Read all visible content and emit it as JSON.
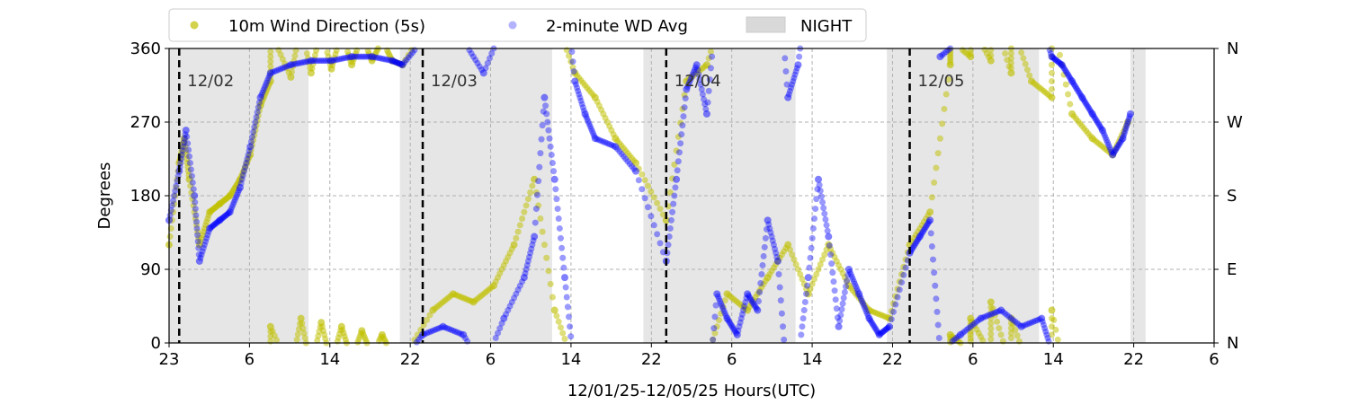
{
  "chart_data": {
    "type": "scatter",
    "xlabel": "12/01/25-12/05/25  Hours(UTC)",
    "ylabel": "Degrees",
    "x_unit": "hours UTC",
    "xlim": [
      "12/01 23:00",
      "12/06 06:00"
    ],
    "ylim": [
      0,
      360
    ],
    "x_ticks": [
      "23",
      "6",
      "14",
      "22",
      "6",
      "14",
      "22",
      "6",
      "14",
      "22",
      "6",
      "14",
      "22",
      "6"
    ],
    "y_ticks": [
      "0",
      "90",
      "180",
      "270",
      "360"
    ],
    "y2_ticks": [
      "N",
      "E",
      "S",
      "W",
      "N"
    ],
    "grid": true,
    "legend_position": "top",
    "legend": [
      {
        "label": "10m Wind Direction (5s)",
        "color": "#bfbf00",
        "marker": "dot"
      },
      {
        "label": "2-minute WD Avg",
        "color": "#0000ff",
        "marker": "dot"
      },
      {
        "label": "NIGHT",
        "color": "#d9d9d9",
        "marker": "patch"
      }
    ],
    "night_periods": [
      [
        "12/01 23:00",
        "12/02 12:45"
      ],
      [
        "12/02 21:45",
        "12/03 12:45"
      ],
      [
        "12/03 21:45",
        "12/04 12:45"
      ],
      [
        "12/04 21:45",
        "12/05 12:45"
      ],
      [
        "12/05 21:45",
        "12/05 23:15"
      ]
    ],
    "day_markers": [
      {
        "time": "12/02 00:00",
        "label": "12/02"
      },
      {
        "time": "12/03 00:00",
        "label": "12/03"
      },
      {
        "time": "12/04 00:00",
        "label": "12/04"
      },
      {
        "time": "12/05 00:00",
        "label": "12/05"
      }
    ],
    "series": [
      {
        "name": "10m Wind Direction (5s)",
        "color": "#bfbf00",
        "points": [
          [
            "12/01 23:00",
            120
          ],
          [
            "12/02 00:00",
            220
          ],
          [
            "12/02 00:30",
            250
          ],
          [
            "12/02 01:00",
            200
          ],
          [
            "12/02 02:00",
            120
          ],
          [
            "12/02 03:00",
            160
          ],
          [
            "12/02 04:00",
            170
          ],
          [
            "12/02 05:00",
            180
          ],
          [
            "12/02 06:00",
            200
          ],
          [
            "12/02 07:00",
            230
          ],
          [
            "12/02 08:00",
            290
          ],
          [
            "12/02 09:00",
            320
          ],
          [
            "12/02 11:00",
            325
          ],
          [
            "12/02 13:00",
            330
          ],
          [
            "12/02 15:00",
            335
          ],
          [
            "12/02 17:00",
            340
          ],
          [
            "12/02 19:00",
            345
          ],
          [
            "12/02 21:00",
            345
          ],
          [
            "12/02 22:00",
            340
          ],
          [
            "12/02 09:00",
            20
          ],
          [
            "12/02 12:00",
            30
          ],
          [
            "12/02 14:00",
            25
          ],
          [
            "12/02 16:00",
            20
          ],
          [
            "12/02 18:00",
            15
          ],
          [
            "12/02 20:00",
            10
          ],
          [
            "12/03 01:00",
            40
          ],
          [
            "12/03 03:00",
            60
          ],
          [
            "12/03 05:00",
            50
          ],
          [
            "12/03 07:00",
            70
          ],
          [
            "12/03 09:00",
            120
          ],
          [
            "12/03 11:00",
            200
          ],
          [
            "12/03 13:00",
            40
          ],
          [
            "12/03 15:00",
            330
          ],
          [
            "12/03 17:00",
            300
          ],
          [
            "12/03 19:00",
            250
          ],
          [
            "12/03 21:00",
            220
          ],
          [
            "12/04 00:00",
            150
          ],
          [
            "12/04 02:00",
            320
          ],
          [
            "12/04 04:00",
            340
          ],
          [
            "12/04 06:00",
            60
          ],
          [
            "12/04 08:00",
            40
          ],
          [
            "12/04 10:00",
            80
          ],
          [
            "12/04 12:00",
            120
          ],
          [
            "12/04 14:00",
            60
          ],
          [
            "12/04 16:00",
            120
          ],
          [
            "12/04 18:00",
            70
          ],
          [
            "12/04 20:00",
            40
          ],
          [
            "12/04 22:00",
            30
          ],
          [
            "12/05 00:00",
            120
          ],
          [
            "12/05 02:00",
            160
          ],
          [
            "12/05 04:00",
            340
          ],
          [
            "12/05 06:00",
            350
          ],
          [
            "12/05 08:00",
            345
          ],
          [
            "12/05 10:00",
            330
          ],
          [
            "12/05 12:00",
            320
          ],
          [
            "12/05 14:00",
            300
          ],
          [
            "12/05 16:00",
            280
          ],
          [
            "12/05 18:00",
            250
          ],
          [
            "12/05 20:00",
            230
          ],
          [
            "12/05 21:30",
            270
          ],
          [
            "12/05 04:00",
            10
          ],
          [
            "12/05 06:00",
            30
          ],
          [
            "12/05 08:00",
            50
          ],
          [
            "12/05 10:00",
            30
          ],
          [
            "12/05 14:00",
            40
          ]
        ]
      },
      {
        "name": "2-minute WD Avg",
        "color": "#0000ff",
        "points": [
          [
            "12/01 23:00",
            150
          ],
          [
            "12/02 00:00",
            210
          ],
          [
            "12/02 00:40",
            260
          ],
          [
            "12/02 01:30",
            180
          ],
          [
            "12/02 02:00",
            100
          ],
          [
            "12/02 03:00",
            140
          ],
          [
            "12/02 04:00",
            150
          ],
          [
            "12/02 05:00",
            160
          ],
          [
            "12/02 06:00",
            190
          ],
          [
            "12/02 07:00",
            240
          ],
          [
            "12/02 08:00",
            300
          ],
          [
            "12/02 09:00",
            330
          ],
          [
            "12/02 11:00",
            340
          ],
          [
            "12/02 13:00",
            345
          ],
          [
            "12/02 15:00",
            345
          ],
          [
            "12/02 17:00",
            350
          ],
          [
            "12/02 19:00",
            350
          ],
          [
            "12/02 21:00",
            345
          ],
          [
            "12/02 22:00",
            340
          ],
          [
            "12/03 00:00",
            10
          ],
          [
            "12/03 02:00",
            20
          ],
          [
            "12/03 04:00",
            10
          ],
          [
            "12/03 06:00",
            330
          ],
          [
            "12/03 08:00",
            30
          ],
          [
            "12/03 10:00",
            80
          ],
          [
            "12/03 11:00",
            130
          ],
          [
            "12/03 12:00",
            300
          ],
          [
            "12/03 13:00",
            200
          ],
          [
            "12/03 14:00",
            80
          ],
          [
            "12/03 15:00",
            320
          ],
          [
            "12/03 16:00",
            280
          ],
          [
            "12/03 17:00",
            250
          ],
          [
            "12/03 19:00",
            240
          ],
          [
            "12/03 21:00",
            210
          ],
          [
            "12/04 00:00",
            100
          ],
          [
            "12/04 01:00",
            200
          ],
          [
            "12/04 02:00",
            310
          ],
          [
            "12/04 03:00",
            340
          ],
          [
            "12/04 04:00",
            280
          ],
          [
            "12/04 05:00",
            60
          ],
          [
            "12/04 06:00",
            30
          ],
          [
            "12/04 07:00",
            10
          ],
          [
            "12/04 08:00",
            60
          ],
          [
            "12/04 09:00",
            40
          ],
          [
            "12/04 10:00",
            150
          ],
          [
            "12/04 11:00",
            100
          ],
          [
            "12/04 12:00",
            300
          ],
          [
            "12/04 13:00",
            340
          ],
          [
            "12/04 14:00",
            80
          ],
          [
            "12/04 15:00",
            200
          ],
          [
            "12/04 16:00",
            130
          ],
          [
            "12/04 17:00",
            20
          ],
          [
            "12/04 18:00",
            90
          ],
          [
            "12/04 19:00",
            60
          ],
          [
            "12/04 20:00",
            30
          ],
          [
            "12/04 21:00",
            10
          ],
          [
            "12/04 22:00",
            20
          ],
          [
            "12/05 00:00",
            110
          ],
          [
            "12/05 01:00",
            130
          ],
          [
            "12/05 02:00",
            150
          ],
          [
            "12/05 03:00",
            350
          ],
          [
            "12/05 05:00",
            10
          ],
          [
            "12/05 07:00",
            30
          ],
          [
            "12/05 09:00",
            40
          ],
          [
            "12/05 11:00",
            20
          ],
          [
            "12/05 13:00",
            30
          ],
          [
            "12/05 14:00",
            350
          ],
          [
            "12/05 15:00",
            340
          ],
          [
            "12/05 16:00",
            320
          ],
          [
            "12/05 17:00",
            300
          ],
          [
            "12/05 18:00",
            280
          ],
          [
            "12/05 19:00",
            260
          ],
          [
            "12/05 20:00",
            230
          ],
          [
            "12/05 21:00",
            250
          ],
          [
            "12/05 21:45",
            280
          ]
        ]
      }
    ]
  }
}
